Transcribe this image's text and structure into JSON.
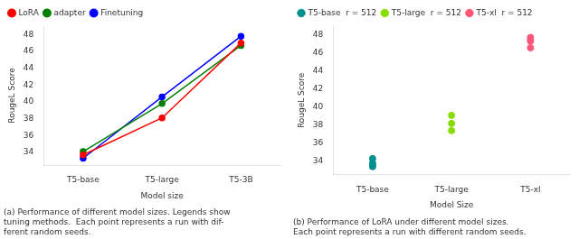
{
  "chart_data": [
    {
      "type": "line",
      "xlabel": "Model size",
      "ylabel": "RougeL Score",
      "categories": [
        "T5-base",
        "T5-large",
        "T5-3B"
      ],
      "series": [
        {
          "name": "LoRA",
          "color": "#ff0000",
          "marker": "o",
          "values": [
            33.7,
            38.1,
            47.0
          ]
        },
        {
          "name": "adapter",
          "color": "#008000",
          "marker": "o",
          "values": [
            34.1,
            39.8,
            46.7
          ]
        },
        {
          "name": "Finetuning",
          "color": "#0000ff",
          "marker": "o",
          "values": [
            33.3,
            40.6,
            47.8
          ]
        }
      ],
      "ylim": [
        32.5,
        49.0
      ],
      "yticks": [
        34,
        36,
        38,
        40,
        42,
        44,
        46,
        48
      ],
      "grid": false,
      "legend": "upper left",
      "subtitle": "(a) Performance of different model sizes. Legends show\ntuning methods.  Each point represents a run with dif-\nferent random seeds."
    },
    {
      "type": "scatter",
      "xlabel": "Model Size",
      "ylabel": "RougeL Score",
      "categories": [
        "T5-base",
        "T5-large",
        "T5-xl"
      ],
      "series": [
        {
          "name": "T5-base  r = 512",
          "color": "#009090",
          "marker": "o",
          "x": [
            "T5-base",
            "T5-base",
            "T5-base",
            "T5-base"
          ],
          "values": [
            34.3,
            33.8,
            33.6,
            33.4
          ]
        },
        {
          "name": "T5-large  r = 512",
          "color": "#88dd00",
          "marker": "o",
          "x": [
            "T5-large",
            "T5-large",
            "T5-large"
          ],
          "values": [
            39.1,
            38.2,
            37.4
          ]
        },
        {
          "name": "T5-xl  r = 512",
          "color": "#ff5577",
          "marker": "o",
          "x": [
            "T5-xl",
            "T5-xl",
            "T5-xl",
            "T5-xl"
          ],
          "values": [
            47.75,
            47.5,
            47.35,
            46.6
          ]
        }
      ],
      "ylim": [
        32.5,
        49.0
      ],
      "yticks": [
        34,
        36,
        38,
        40,
        42,
        44,
        46,
        48
      ],
      "grid": false,
      "legend": "upper left",
      "subtitle": "(b) Performance of LoRA under different model sizes.\nEach point represents a run with different random seeds."
    }
  ]
}
